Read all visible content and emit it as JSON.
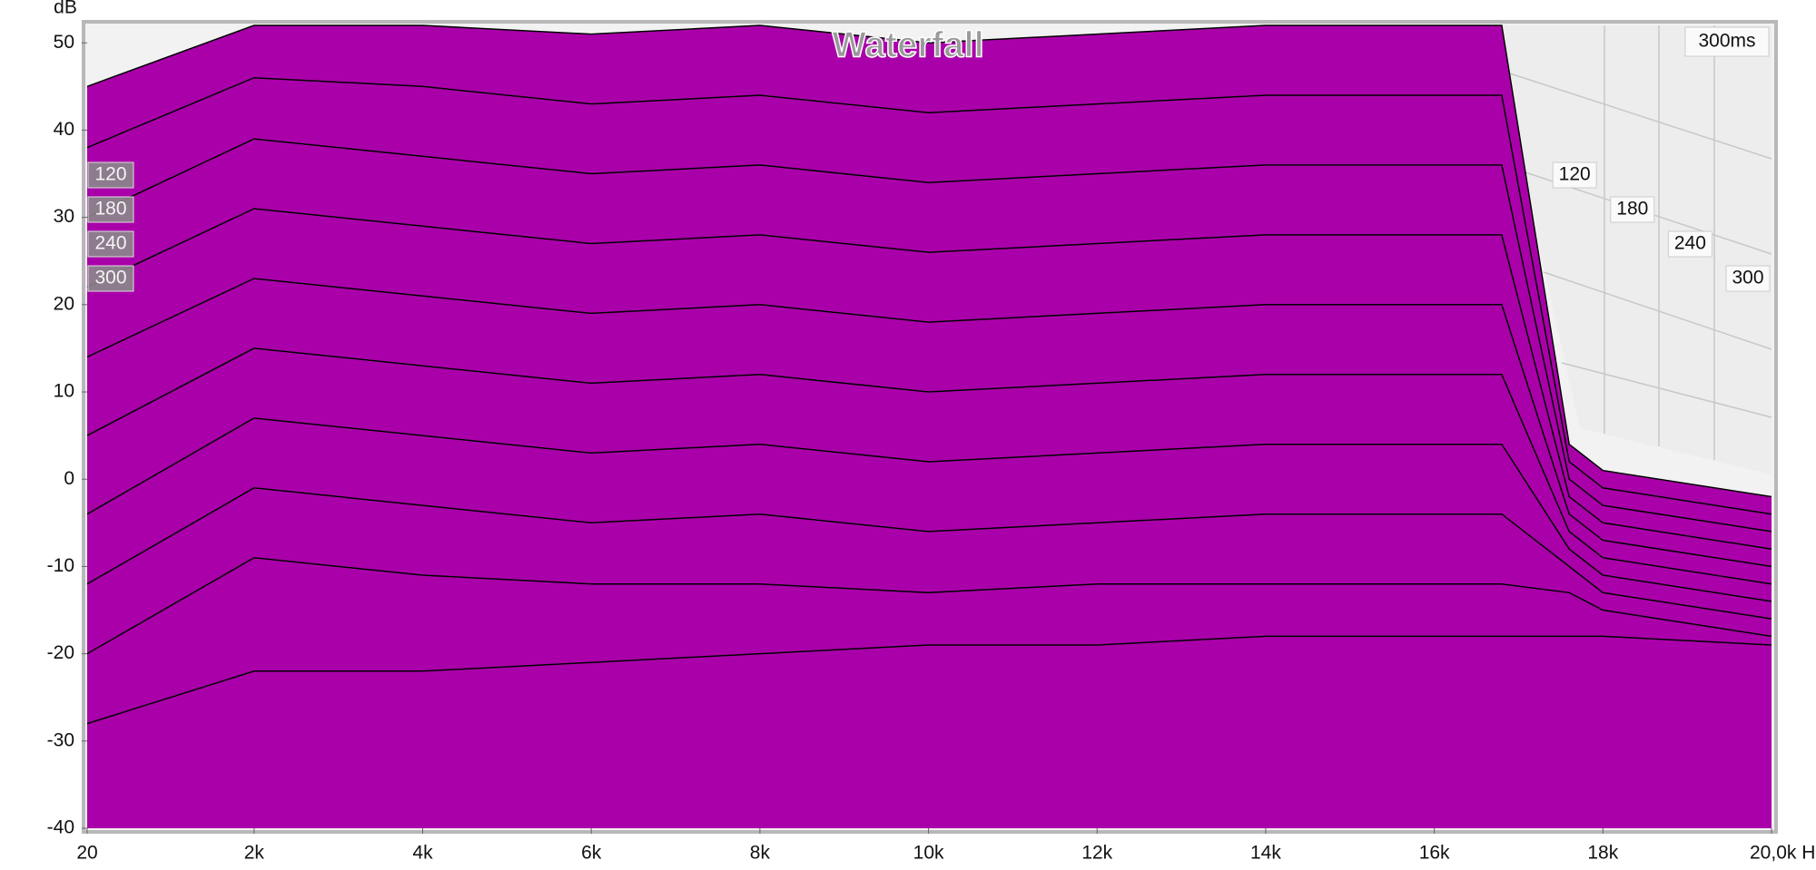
{
  "chart_data": {
    "type": "waterfall",
    "title": "Waterfall",
    "y_label": "dB",
    "time_label": "300ms",
    "color": "#aa00aa",
    "outline": "#000000",
    "x": [
      20,
      2000,
      4000,
      6000,
      8000,
      10000,
      12000,
      14000,
      16000,
      16800,
      17600,
      18000,
      20000
    ],
    "series": [
      {
        "values": [
          45,
          52,
          52,
          51,
          52,
          50,
          51,
          52,
          52,
          52,
          4,
          1,
          -2
        ]
      },
      {
        "values": [
          38,
          46,
          45,
          43,
          44,
          42,
          43,
          44,
          44,
          44,
          2,
          -1,
          -4
        ]
      },
      {
        "values": [
          30,
          39,
          37,
          35,
          36,
          34,
          35,
          36,
          36,
          36,
          0,
          -3,
          -6
        ]
      },
      {
        "values": [
          22,
          31,
          29,
          27,
          28,
          26,
          27,
          28,
          28,
          28,
          -2,
          -5,
          -8
        ]
      },
      {
        "values": [
          14,
          23,
          21,
          19,
          20,
          18,
          19,
          20,
          20,
          20,
          -4,
          -7,
          -10
        ]
      },
      {
        "values": [
          5,
          15,
          13,
          11,
          12,
          10,
          11,
          12,
          12,
          12,
          -6,
          -9,
          -12
        ]
      },
      {
        "values": [
          -4,
          7,
          5,
          3,
          4,
          2,
          3,
          4,
          4,
          4,
          -8,
          -11,
          -14
        ]
      },
      {
        "values": [
          -12,
          -1,
          -3,
          -5,
          -4,
          -6,
          -5,
          -4,
          -4,
          -4,
          -10,
          -13,
          -16
        ]
      },
      {
        "values": [
          -20,
          -9,
          -11,
          -12,
          -12,
          -13,
          -12,
          -12,
          -12,
          -12,
          -13,
          -15,
          -18
        ]
      },
      {
        "values": [
          -28,
          -22,
          -22,
          -21,
          -20,
          -19,
          -19,
          -18,
          -18,
          -18,
          -18,
          -18,
          -19
        ]
      }
    ],
    "xlim": [
      20,
      20000
    ],
    "xticks": [
      20,
      {
        "value": 2000,
        "label": "2k"
      },
      {
        "value": 4000,
        "label": "4k"
      },
      {
        "value": 6000,
        "label": "6k"
      },
      {
        "value": 8000,
        "label": "8k"
      },
      {
        "value": 10000,
        "label": "10k"
      },
      {
        "value": 12000,
        "label": "12k"
      },
      {
        "value": 14000,
        "label": "14k"
      },
      {
        "value": 16000,
        "label": "16k"
      },
      {
        "value": 18000,
        "label": "18k"
      },
      {
        "value": 20000,
        "label": "20,0k H"
      }
    ],
    "ylim": [
      -40,
      52
    ],
    "yticks": [
      -40,
      -30,
      -20,
      -10,
      0,
      10,
      20,
      30,
      40,
      50
    ],
    "zlim": [
      0,
      300
    ],
    "zticks": [
      120,
      180,
      240,
      300
    ]
  }
}
